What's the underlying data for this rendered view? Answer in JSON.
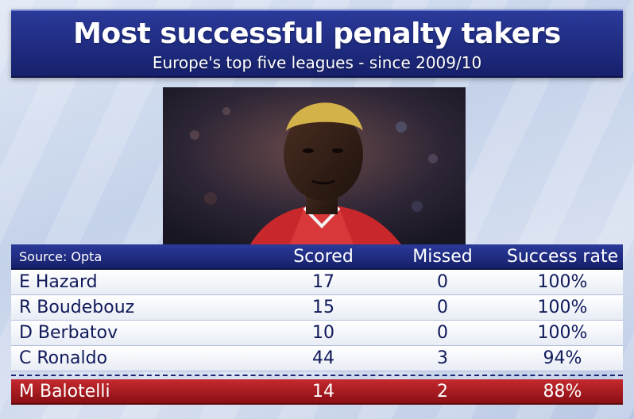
{
  "header": {
    "title": "Most successful penalty takers",
    "subtitle": "Europe's top five leagues - since 2009/10"
  },
  "table": {
    "source": "Source: Opta",
    "columns": [
      "Scored",
      "Missed",
      "Success rate"
    ],
    "rows": [
      {
        "name": "E Hazard",
        "scored": "17",
        "missed": "0",
        "rate": "100%"
      },
      {
        "name": "R Boudebouz",
        "scored": "15",
        "missed": "0",
        "rate": "100%"
      },
      {
        "name": "D Berbatov",
        "scored": "10",
        "missed": "0",
        "rate": "100%"
      },
      {
        "name": "C Ronaldo",
        "scored": "44",
        "missed": "3",
        "rate": "94%"
      }
    ],
    "highlight": {
      "name": "M Balotelli",
      "scored": "14",
      "missed": "2",
      "rate": "88%"
    }
  },
  "colors": {
    "panel": "#1e2a80",
    "highlight": "#b3191f"
  }
}
